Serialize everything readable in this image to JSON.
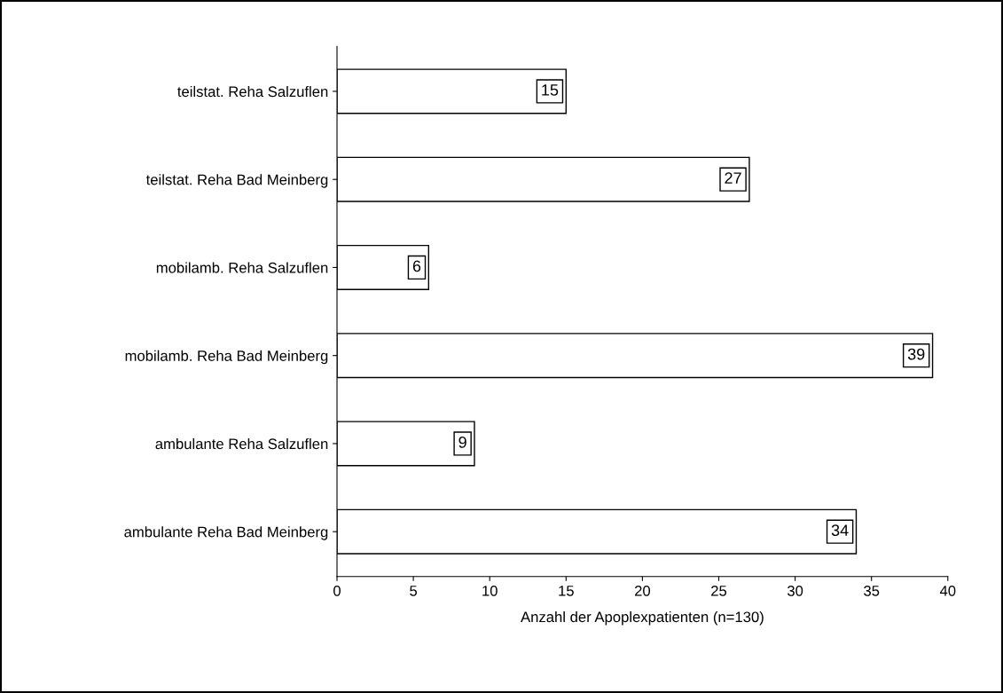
{
  "chart_data": {
    "type": "bar",
    "orientation": "horizontal",
    "xlabel": "Anzahl der Apoplexpatienten (n=130)",
    "categories": [
      "teilstat. Reha Salzuflen",
      "teilstat. Reha Bad Meinberg",
      "mobilamb. Reha Salzuflen",
      "mobilamb. Reha Bad Meinberg",
      "ambulante Reha Salzuflen",
      "ambulante Reha Bad Meinberg"
    ],
    "values": [
      15,
      27,
      6,
      39,
      9,
      34
    ],
    "color": "#ffffff",
    "data_labels": true,
    "grid": false,
    "legend": false,
    "xlim": [
      0,
      40
    ],
    "xticks": [
      0,
      5,
      10,
      15,
      20,
      25,
      30,
      35,
      40
    ]
  }
}
